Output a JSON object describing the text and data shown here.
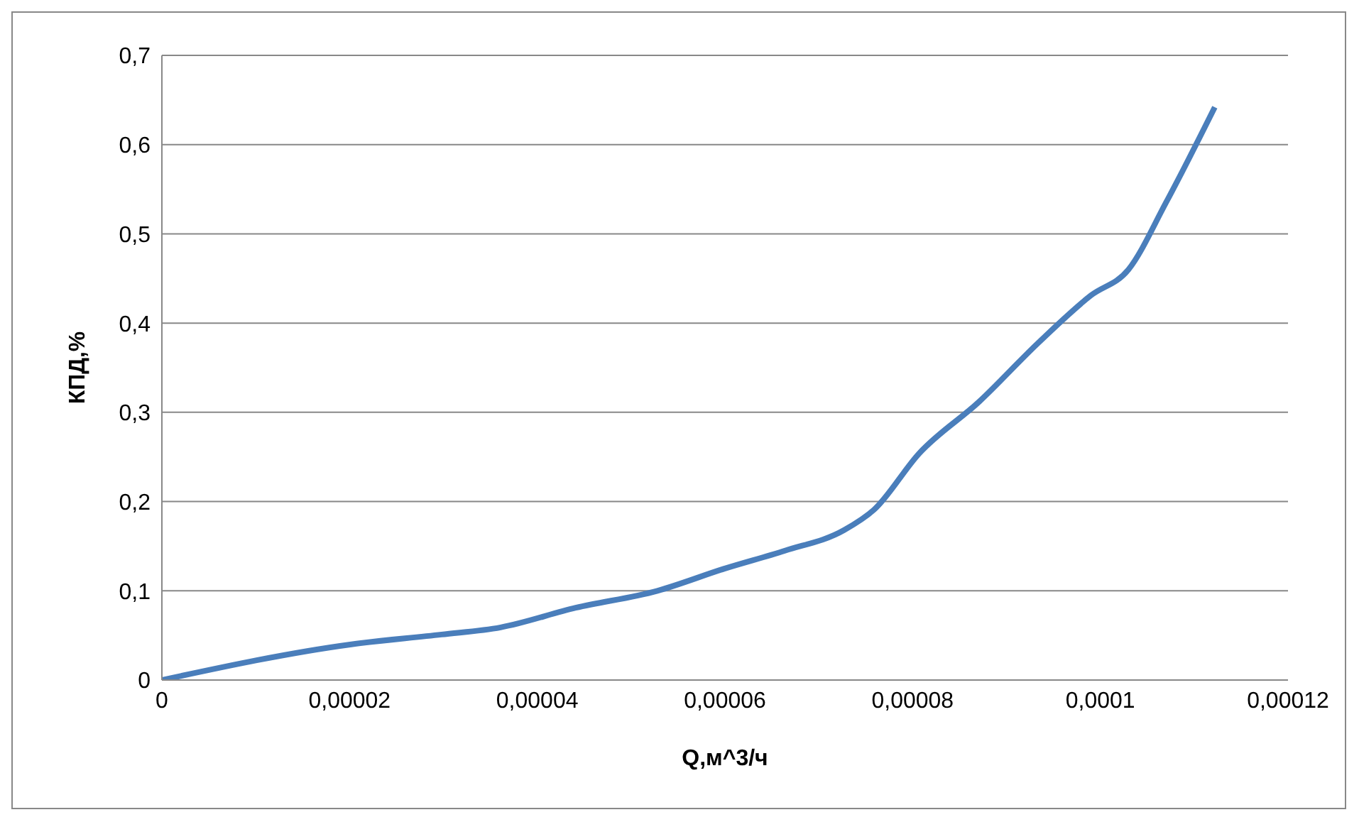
{
  "chart_data": {
    "type": "line",
    "xlabel": "Q,м^3/ч",
    "ylabel": "КПД,%",
    "x": [
      0,
      2.02e-05,
      2.98e-05,
      3.61e-05,
      4.41e-05,
      5.28e-05,
      6e-05,
      6.64e-05,
      7.27e-05,
      7.59e-05,
      8.07e-05,
      8.71e-05,
      9.34e-05,
      9.9e-05,
      0.000103,
      0.000107,
      0.0001122
    ],
    "series": [
      {
        "color": "#4a7ebb",
        "values": [
          0,
          0.04,
          0.051,
          0.059,
          0.081,
          0.1,
          0.125,
          0.145,
          0.168,
          0.191,
          0.254,
          0.312,
          0.378,
          0.431,
          0.46,
          0.535,
          0.642
        ]
      }
    ],
    "xlim": [
      0,
      0.00012
    ],
    "xticks": [
      0,
      {
        "value": 2e-05,
        "label": "0,00002"
      },
      {
        "value": 4e-05,
        "label": "0,00004"
      },
      {
        "value": 6e-05,
        "label": "0,00006"
      },
      {
        "value": 8e-05,
        "label": "0,00008"
      },
      {
        "value": 0.0001,
        "label": "0,0001"
      },
      {
        "value": 0.00012,
        "label": "0,00012"
      }
    ],
    "ylim": [
      0,
      0.7
    ],
    "yticks": [
      0,
      {
        "value": 0.1,
        "label": "0,1"
      },
      {
        "value": 0.2,
        "label": "0,2"
      },
      {
        "value": 0.3,
        "label": "0,3"
      },
      {
        "value": 0.4,
        "label": "0,4"
      },
      {
        "value": 0.5,
        "label": "0,5"
      },
      {
        "value": 0.6,
        "label": "0,6"
      },
      {
        "value": 0.7,
        "label": "0,7"
      }
    ],
    "grid": "y",
    "legend": false,
    "marker": "none",
    "line_style": "solid"
  }
}
